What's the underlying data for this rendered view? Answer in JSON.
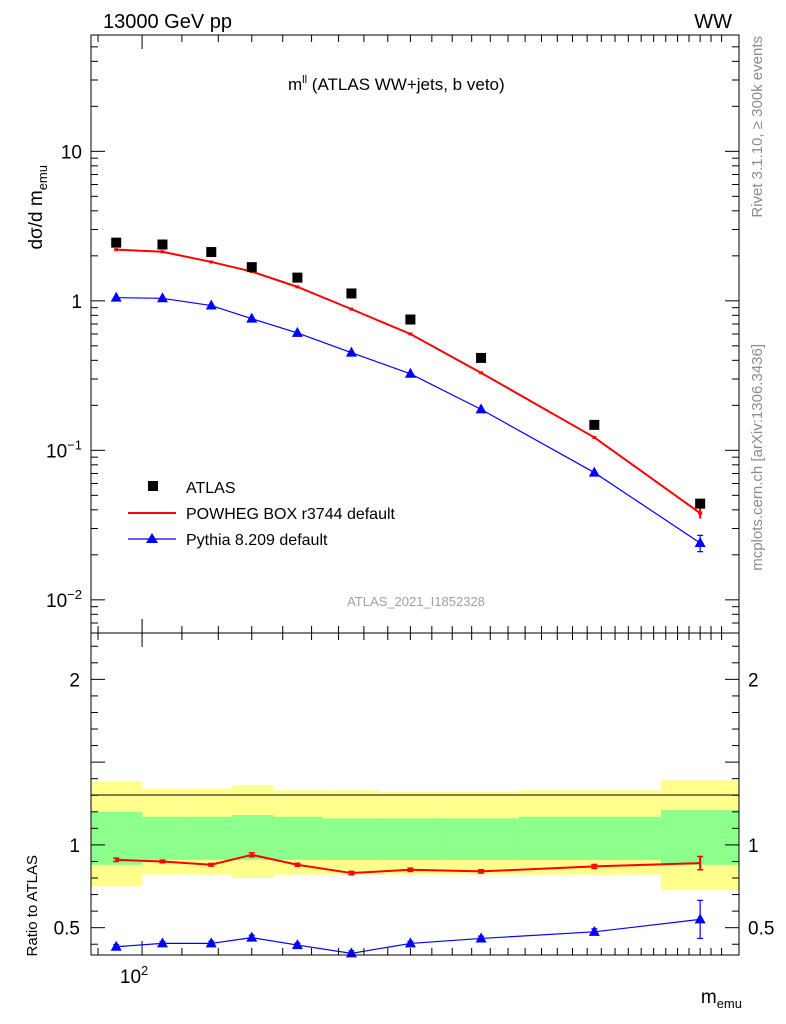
{
  "header": {
    "left": "13000 GeV pp",
    "right": "WW"
  },
  "side_labels": {
    "rivet": "Rivet 3.1.10, ≥ 300k events",
    "mcplots": "mcplots.cern.ch [arXiv:1306.3436]"
  },
  "chart_data": [
    {
      "type": "scatter",
      "title_main": "m",
      "title_sup": "ll",
      "title_rest": " (ATLAS WW+jets, b veto)",
      "ylabel_main": "dσ/d m",
      "ylabel_sub": "emu",
      "yscale": "log",
      "ylim": [
        0.006,
        60
      ],
      "yticks": [
        {
          "base": "10",
          "exp": "−2",
          "value": 0.01
        },
        {
          "base": "10",
          "exp": "−1",
          "value": 0.1
        },
        {
          "base": "1",
          "exp": "",
          "value": 1
        },
        {
          "base": "10",
          "exp": "",
          "value": 10
        }
      ],
      "analysis_label": "ATLAS_2021_I1852328",
      "legend_position": "bottom-left",
      "series": [
        {
          "name": "ATLAS",
          "color": "#000000",
          "marker": "square",
          "x": [
            94,
            105,
            118,
            130,
            145,
            165,
            190,
            225,
            295,
            380
          ],
          "y": [
            2.45,
            2.38,
            2.12,
            1.68,
            1.43,
            1.12,
            0.75,
            0.415,
            0.148,
            0.044
          ]
        },
        {
          "name": "POWHEG BOX r3744 default",
          "color": "#ff0000",
          "marker": "none",
          "x": [
            94,
            105,
            118,
            130,
            145,
            165,
            190,
            225,
            295,
            380
          ],
          "y": [
            2.2,
            2.13,
            1.82,
            1.57,
            1.24,
            0.88,
            0.6,
            0.33,
            0.122,
            0.038
          ],
          "yerr": [
            0,
            0,
            0,
            0,
            0,
            0,
            0,
            0,
            0,
            0.003
          ]
        },
        {
          "name": "Pythia 8.209 default",
          "color": "#0000ff",
          "marker": "triangle",
          "x": [
            94,
            105,
            118,
            130,
            145,
            165,
            190,
            225,
            295,
            380
          ],
          "y": [
            1.05,
            1.04,
            0.93,
            0.76,
            0.61,
            0.45,
            0.325,
            0.188,
            0.071,
            0.024
          ],
          "yerr": [
            0,
            0,
            0,
            0,
            0,
            0,
            0,
            0,
            0,
            0.003
          ]
        }
      ]
    },
    {
      "type": "scatter",
      "ylabel": "Ratio to ATLAS",
      "xlabel_main": "m",
      "xlabel_sub": "emu",
      "ylim": [
        0.335,
        2.28
      ],
      "yticks": [
        {
          "label": "0.5",
          "value": 0.5
        },
        {
          "label": "1",
          "value": 1
        },
        {
          "label": "2",
          "value": 2
        }
      ],
      "xscale": "log",
      "xlim": [
        88.5,
        417
      ],
      "xticks": [
        {
          "base": "10",
          "exp": "2",
          "value": 100
        }
      ],
      "uncertainty_bands": {
        "edges": [
          88.5,
          100,
          111,
          124,
          137,
          154,
          176,
          205,
          246,
          346,
          417
        ],
        "yellow_lo": [
          0.75,
          0.82,
          0.82,
          0.8,
          0.82,
          0.82,
          0.82,
          0.82,
          0.82,
          0.73
        ],
        "yellow_hi": [
          1.38,
          1.34,
          1.34,
          1.36,
          1.33,
          1.33,
          1.32,
          1.32,
          1.33,
          1.39
        ],
        "green_lo": [
          0.88,
          0.91,
          0.91,
          0.91,
          0.91,
          0.91,
          0.91,
          0.91,
          0.91,
          0.88
        ],
        "green_hi": [
          1.2,
          1.17,
          1.17,
          1.18,
          1.17,
          1.16,
          1.16,
          1.16,
          1.17,
          1.21
        ],
        "yellow_color": "#ffff8c",
        "green_color": "#8cff8c"
      },
      "series": [
        {
          "name": "POWHEG BOX r3744 default",
          "color": "#ff0000",
          "marker": "none",
          "x": [
            94,
            105,
            118,
            130,
            145,
            165,
            190,
            225,
            295,
            380
          ],
          "y": [
            0.91,
            0.9,
            0.88,
            0.94,
            0.88,
            0.83,
            0.85,
            0.84,
            0.87,
            0.89
          ],
          "yerr": [
            0.01,
            0.008,
            0.008,
            0.012,
            0.009,
            0.01,
            0.01,
            0.01,
            0.012,
            0.04
          ]
        },
        {
          "name": "Pythia 8.209 default",
          "color": "#0000ff",
          "marker": "triangle",
          "x": [
            94,
            105,
            118,
            130,
            145,
            165,
            190,
            225,
            295,
            380
          ],
          "y": [
            0.385,
            0.405,
            0.405,
            0.44,
            0.395,
            0.345,
            0.405,
            0.435,
            0.475,
            0.55
          ],
          "yerr": [
            0.012,
            0.012,
            0.013,
            0.015,
            0.012,
            0.015,
            0.012,
            0.014,
            0.018,
            0.115
          ]
        }
      ]
    }
  ]
}
